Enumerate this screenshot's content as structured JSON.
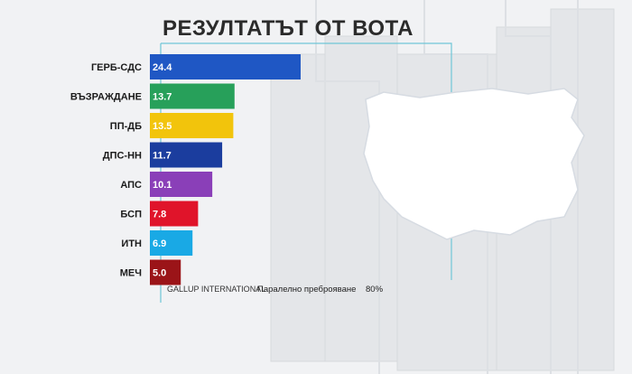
{
  "title": "РЕЗУЛТАТЪТ ОТ ВОТА",
  "source": "GALLUP INTERNATIONAL",
  "count_label": "Паралелно преброяване",
  "count_value": "80%",
  "chart_data": {
    "type": "bar",
    "orientation": "horizontal",
    "title": "РЕЗУЛТАТЪТ ОТ ВОТА",
    "categories": [
      "ГЕРБ-СДС",
      "ВЪЗРАЖДАНЕ",
      "ПП-ДБ",
      "ДПС-НН",
      "АПС",
      "БСП",
      "ИТН",
      "МЕЧ"
    ],
    "values": [
      24.4,
      13.7,
      13.5,
      11.7,
      10.1,
      7.8,
      6.9,
      5.0
    ],
    "value_labels": [
      "24.4",
      "13.7",
      "13.5",
      "11.7",
      "10.1",
      "7.8",
      "6.9",
      "5.0"
    ],
    "colors": [
      "#1f57c4",
      "#27a05a",
      "#f2c40c",
      "#1b3d9e",
      "#8a3fb8",
      "#e0142a",
      "#19a9e5",
      "#9b1418"
    ],
    "xlim": [
      0,
      24.4
    ]
  },
  "map_region": "Bulgaria"
}
